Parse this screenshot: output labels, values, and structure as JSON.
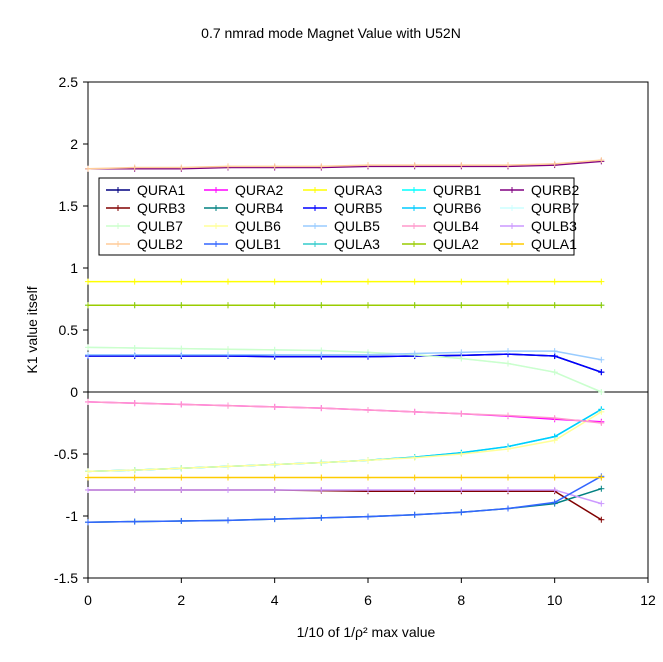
{
  "chart_data": {
    "type": "line",
    "title": "0.7 nmrad mode Magnet Value with U52N",
    "xlabel": "1/10 of 1/ρ² max value",
    "ylabel": "K1 value itself",
    "xlim": [
      0,
      12
    ],
    "ylim": [
      -1.5,
      2.5
    ],
    "xticks": [
      "0",
      "2",
      "4",
      "6",
      "8",
      "10",
      "12"
    ],
    "yticks": [
      "2.5",
      "2",
      "1.5",
      "1",
      "0.5",
      "0",
      "-0.5",
      "-1",
      "-1.5"
    ],
    "grid": false,
    "legend_position": "upper middle",
    "x": [
      0,
      1,
      2,
      3,
      4,
      5,
      6,
      7,
      8,
      9,
      10,
      11
    ],
    "series": [
      {
        "name": "QURA1",
        "color": "#000080",
        "values": [
          0.29,
          0.29,
          0.29,
          0.29,
          0.285,
          0.285,
          0.285,
          0.29,
          0.295,
          0.305,
          0.29,
          0.16
        ]
      },
      {
        "name": "QURA2",
        "color": "#FF00FF",
        "values": [
          -0.08,
          -0.09,
          -0.1,
          -0.11,
          -0.12,
          -0.13,
          -0.145,
          -0.16,
          -0.175,
          -0.195,
          -0.22,
          -0.24
        ]
      },
      {
        "name": "QURA3",
        "color": "#FFFF00",
        "values": [
          0.89,
          0.89,
          0.89,
          0.89,
          0.89,
          0.89,
          0.89,
          0.89,
          0.89,
          0.89,
          0.89,
          0.89
        ]
      },
      {
        "name": "QURB1",
        "color": "#00FFFF",
        "values": [
          -0.64,
          -0.63,
          -0.615,
          -0.6,
          -0.585,
          -0.57,
          -0.55,
          -0.525,
          -0.49,
          -0.44,
          -0.36,
          -0.14
        ]
      },
      {
        "name": "QURB2",
        "color": "#800080",
        "values": [
          1.8,
          1.8,
          1.8,
          1.81,
          1.81,
          1.81,
          1.82,
          1.82,
          1.82,
          1.82,
          1.83,
          1.86
        ]
      },
      {
        "name": "QURB3",
        "color": "#800000",
        "values": [
          -0.79,
          -0.79,
          -0.79,
          -0.79,
          -0.79,
          -0.795,
          -0.8,
          -0.8,
          -0.8,
          -0.8,
          -0.8,
          -1.03
        ]
      },
      {
        "name": "QURB4",
        "color": "#008080",
        "values": [
          -1.05,
          -1.045,
          -1.04,
          -1.035,
          -1.025,
          -1.015,
          -1.005,
          -0.99,
          -0.97,
          -0.94,
          -0.9,
          -0.78
        ]
      },
      {
        "name": "QURB5",
        "color": "#0000FF",
        "values": [
          0.29,
          0.29,
          0.29,
          0.29,
          0.285,
          0.285,
          0.285,
          0.29,
          0.295,
          0.305,
          0.29,
          0.16
        ]
      },
      {
        "name": "QURB6",
        "color": "#00CCFF",
        "values": [
          -0.64,
          -0.63,
          -0.615,
          -0.6,
          -0.585,
          -0.57,
          -0.55,
          -0.525,
          -0.49,
          -0.44,
          -0.36,
          -0.14
        ]
      },
      {
        "name": "QURB7",
        "color": "#CCFFFF",
        "values": [
          0.36,
          0.355,
          0.35,
          0.345,
          0.34,
          0.335,
          0.32,
          0.3,
          0.27,
          0.23,
          0.16,
          0.0
        ]
      },
      {
        "name": "QULB7",
        "color": "#CCFFCC",
        "values": [
          0.36,
          0.355,
          0.35,
          0.345,
          0.34,
          0.335,
          0.32,
          0.3,
          0.27,
          0.23,
          0.16,
          0.0
        ]
      },
      {
        "name": "QULB6",
        "color": "#FFFF99",
        "values": [
          -0.64,
          -0.63,
          -0.615,
          -0.6,
          -0.585,
          -0.57,
          -0.55,
          -0.53,
          -0.5,
          -0.46,
          -0.39,
          -0.16
        ]
      },
      {
        "name": "QULB5",
        "color": "#99CCFF",
        "values": [
          0.3,
          0.3,
          0.3,
          0.3,
          0.3,
          0.3,
          0.3,
          0.31,
          0.32,
          0.33,
          0.33,
          0.26
        ]
      },
      {
        "name": "QULB4",
        "color": "#FF99CC",
        "values": [
          -0.08,
          -0.09,
          -0.1,
          -0.11,
          -0.12,
          -0.13,
          -0.145,
          -0.16,
          -0.175,
          -0.19,
          -0.21,
          -0.25
        ]
      },
      {
        "name": "QULB3",
        "color": "#CC99FF",
        "values": [
          -0.79,
          -0.79,
          -0.79,
          -0.79,
          -0.79,
          -0.79,
          -0.79,
          -0.79,
          -0.79,
          -0.79,
          -0.79,
          -0.9
        ]
      },
      {
        "name": "QULB2",
        "color": "#FFCC99",
        "values": [
          1.8,
          1.81,
          1.81,
          1.82,
          1.82,
          1.82,
          1.83,
          1.83,
          1.83,
          1.83,
          1.84,
          1.87
        ]
      },
      {
        "name": "QULB1",
        "color": "#3366FF",
        "values": [
          -1.05,
          -1.045,
          -1.04,
          -1.035,
          -1.025,
          -1.015,
          -1.005,
          -0.99,
          -0.97,
          -0.94,
          -0.89,
          -0.68
        ]
      },
      {
        "name": "QULA3",
        "color": "#33CCCC",
        "values": [
          0.7,
          0.7,
          0.7,
          0.7,
          0.7,
          0.7,
          0.7,
          0.7,
          0.7,
          0.7,
          0.7,
          0.7
        ]
      },
      {
        "name": "QULA2",
        "color": "#99CC00",
        "values": [
          0.7,
          0.7,
          0.7,
          0.7,
          0.7,
          0.7,
          0.7,
          0.7,
          0.7,
          0.7,
          0.7,
          0.7
        ]
      },
      {
        "name": "QULA1",
        "color": "#FFCC00",
        "values": [
          -0.69,
          -0.69,
          -0.69,
          -0.69,
          -0.69,
          -0.69,
          -0.69,
          -0.69,
          -0.69,
          -0.69,
          -0.69,
          -0.69
        ]
      }
    ]
  }
}
